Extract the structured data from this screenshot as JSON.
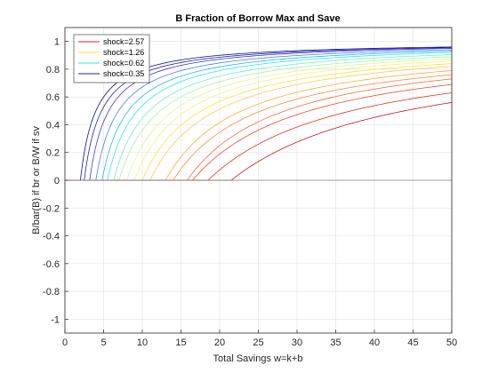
{
  "chart_data": {
    "type": "line",
    "title": "B Fraction of Borrow Max and Save",
    "xlabel": "Total Savings w=k+b",
    "ylabel": "B/bar(B) if br or B/W if sv",
    "xlim": [
      0,
      50
    ],
    "ylim": [
      -1.1,
      1.1
    ],
    "xticks": [
      0,
      5,
      10,
      15,
      20,
      25,
      30,
      35,
      40,
      45,
      50
    ],
    "yticks": [
      -1,
      -0.8,
      -0.6,
      -0.4,
      -0.2,
      0,
      0.2,
      0.4,
      0.6,
      0.8,
      1
    ],
    "ytick_labels": [
      "-1",
      "-0.8",
      "-0.6",
      "-0.4",
      "-0.2",
      "0",
      "0.2",
      "0.4",
      "0.6",
      "0.8",
      "1"
    ],
    "grid": true,
    "legend_position": "top-left",
    "legend": [
      {
        "label": "shock=2.57",
        "color": "#e31a1c"
      },
      {
        "label": "shock=1.26",
        "color": "#ffe135"
      },
      {
        "label": "shock=0.62",
        "color": "#36e6e6"
      },
      {
        "label": "shock=0.35",
        "color": "#1f1fa8"
      }
    ],
    "reference_line": {
      "y": 0,
      "color": "#808080"
    },
    "series": [
      {
        "start": 2.0,
        "end_value": 0.96,
        "color": "#0b0b86"
      },
      {
        "start": 2.5,
        "end_value": 0.955,
        "color": "#1f1fb0"
      },
      {
        "start": 3.2,
        "end_value": 0.95,
        "color": "#3a3ad8"
      },
      {
        "start": 4.0,
        "end_value": 0.94,
        "color": "#4a7ef0"
      },
      {
        "start": 4.8,
        "end_value": 0.93,
        "color": "#2ab6f0"
      },
      {
        "start": 5.5,
        "end_value": 0.92,
        "color": "#36e6e6"
      },
      {
        "start": 6.3,
        "end_value": 0.905,
        "color": "#6fefc8"
      },
      {
        "start": 7.0,
        "end_value": 0.89,
        "color": "#a6f2a6"
      },
      {
        "start": 8.0,
        "end_value": 0.875,
        "color": "#dff592"
      },
      {
        "start": 9.0,
        "end_value": 0.86,
        "color": "#f5f07a"
      },
      {
        "start": 10.0,
        "end_value": 0.84,
        "color": "#ffe135"
      },
      {
        "start": 11.0,
        "end_value": 0.82,
        "color": "#ffc94a"
      },
      {
        "start": 13.0,
        "end_value": 0.79,
        "color": "#ffaa3a"
      },
      {
        "start": 14.0,
        "end_value": 0.76,
        "color": "#ff8a3a"
      },
      {
        "start": 15.8,
        "end_value": 0.73,
        "color": "#f86a3a"
      },
      {
        "start": 16.5,
        "end_value": 0.69,
        "color": "#f04a2a"
      },
      {
        "start": 18.5,
        "end_value": 0.63,
        "color": "#e3301c"
      },
      {
        "start": 21.5,
        "end_value": 0.56,
        "color": "#c81818"
      }
    ]
  }
}
